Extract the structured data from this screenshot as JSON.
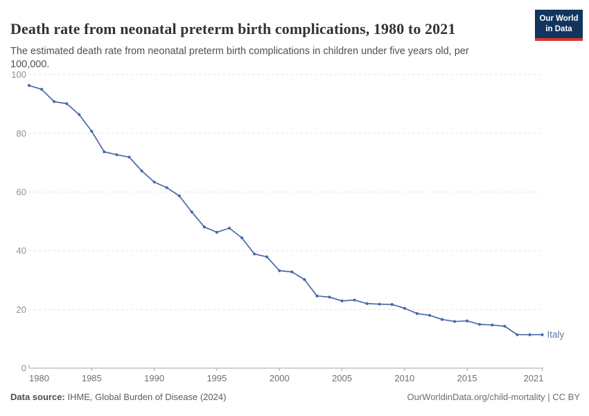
{
  "header": {
    "title": "Death rate from neonatal preterm birth complications, 1980 to 2021",
    "subtitle": "The estimated death rate from neonatal preterm birth complications in children under five years old, per 100,000.",
    "logo": {
      "line1": "Our World",
      "line2": "in Data",
      "bg_color": "#12355e",
      "accent_color": "#d9382e"
    }
  },
  "footer": {
    "datasource_label": "Data source:",
    "datasource_value": " IHME, Global Burden of Disease (2024)",
    "link": "OurWorldinData.org/child-mortality | CC BY"
  },
  "chart_data": {
    "type": "line",
    "title": "Death rate from neonatal preterm birth complications, 1980 to 2021",
    "xlabel": "",
    "ylabel": "",
    "xlim": [
      1980,
      2021
    ],
    "ylim": [
      0,
      100
    ],
    "grid": "horizontal-dashed",
    "legend_position": "end-of-line-label",
    "x_ticks": [
      1980,
      1985,
      1990,
      1995,
      2000,
      2005,
      2010,
      2015,
      2021
    ],
    "y_ticks": [
      0,
      20,
      40,
      60,
      80,
      100
    ],
    "colors": {
      "line": "#4a69a8",
      "entity_label": "#5b7ab0",
      "gridline": "#dddddd",
      "axis": "#a3a3a3",
      "y_tick_label": "#8f8f8f",
      "x_tick_label": "#6f6f6f"
    },
    "series": [
      {
        "name": "Italy",
        "x": [
          1980,
          1981,
          1982,
          1983,
          1984,
          1985,
          1986,
          1987,
          1988,
          1989,
          1990,
          1991,
          1992,
          1993,
          1994,
          1995,
          1996,
          1997,
          1998,
          1999,
          2000,
          2001,
          2002,
          2003,
          2004,
          2005,
          2006,
          2007,
          2008,
          2009,
          2010,
          2011,
          2012,
          2013,
          2014,
          2015,
          2016,
          2017,
          2018,
          2019,
          2020,
          2021
        ],
        "values": [
          96.3,
          95.0,
          90.8,
          90.1,
          86.4,
          80.7,
          73.7,
          72.7,
          71.9,
          67.2,
          63.4,
          61.5,
          58.7,
          53.2,
          48.1,
          46.3,
          47.7,
          44.4,
          38.9,
          37.9,
          33.2,
          32.8,
          30.2,
          24.6,
          24.2,
          22.9,
          23.2,
          22.0,
          21.8,
          21.7,
          20.4,
          18.6,
          18.0,
          16.6,
          15.9,
          16.1,
          14.9,
          14.7,
          14.3,
          11.4,
          11.4,
          11.4
        ]
      }
    ]
  }
}
